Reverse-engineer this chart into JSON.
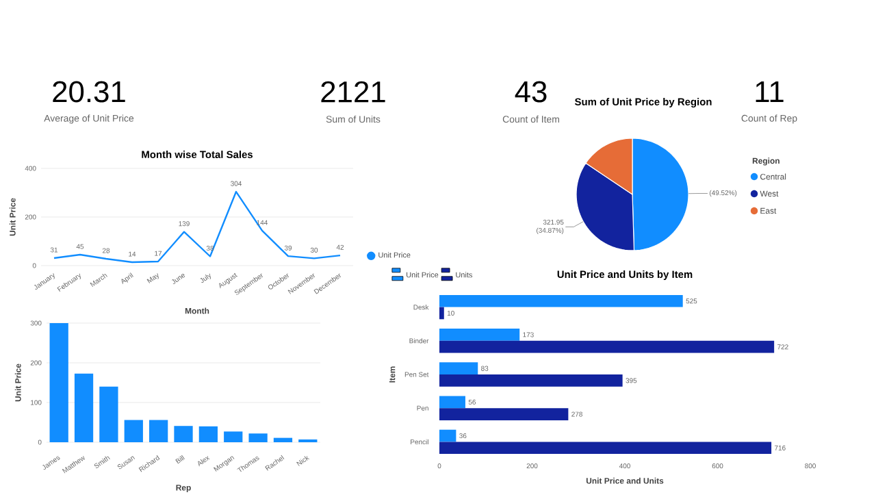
{
  "chart_data": [
    {
      "type": "other",
      "title": "20.31",
      "subtitle": "Average of Unit Price"
    },
    {
      "type": "other",
      "title": "2121",
      "subtitle": "Sum of Units"
    },
    {
      "type": "other",
      "title": "43",
      "subtitle": "Count of Item"
    },
    {
      "type": "other",
      "title": "11",
      "subtitle": "Count of Rep"
    },
    {
      "type": "line",
      "title": "Month wise Total Sales",
      "xlabel": "Month",
      "ylabel": "Unit Price",
      "categories": [
        "January",
        "February",
        "March",
        "April",
        "May",
        "June",
        "July",
        "August",
        "September",
        "October",
        "November",
        "December"
      ],
      "series": [
        {
          "name": "Unit Price",
          "color": "#118dff",
          "values": [
            31,
            45,
            28,
            14,
            17,
            139,
            38,
            304,
            144,
            39,
            30,
            42
          ]
        }
      ],
      "ylim": [
        0,
        400
      ],
      "yticks": [
        0,
        200,
        400
      ],
      "grid": "y",
      "legend": "right",
      "data_labels": true
    },
    {
      "type": "pie",
      "title": "Sum of Unit Price by Region",
      "legend_title": "Region",
      "legend": "right",
      "categories": [
        "Central",
        "West",
        "East"
      ],
      "values": [
        49.52,
        34.87,
        15.61
      ],
      "colors": [
        "#118dff",
        "#12239e",
        "#e66c37"
      ],
      "value_labels": [
        "(49.52%)",
        "321.95 (34.87%)",
        null
      ]
    },
    {
      "type": "bar",
      "xlabel": "Rep",
      "ylabel": "Unit Price",
      "categories": [
        "James",
        "Matthew",
        "Smith",
        "Susan",
        "Richard",
        "Bill",
        "Alex",
        "Morgan",
        "Thomas",
        "Rachel",
        "Nick"
      ],
      "values": [
        300,
        173,
        140,
        56,
        56,
        41,
        40,
        27,
        22,
        11,
        7
      ],
      "color": "#118dff",
      "ylim": [
        0,
        300
      ],
      "yticks": [
        0,
        100,
        200,
        300
      ],
      "grid": "y"
    },
    {
      "type": "bar",
      "orientation": "horizontal",
      "title": "Unit Price and Units by Item",
      "xlabel": "Unit Price and Units",
      "ylabel": "Item",
      "categories": [
        "Desk",
        "Binder",
        "Pen Set",
        "Pen",
        "Pencil"
      ],
      "series": [
        {
          "name": "Unit Price",
          "color": "#118dff",
          "values": [
            525,
            173,
            83,
            56,
            36
          ]
        },
        {
          "name": "Units",
          "color": "#12239e",
          "values": [
            10,
            722,
            395,
            278,
            716
          ]
        }
      ],
      "xlim": [
        0,
        800
      ],
      "xticks": [
        0,
        200,
        400,
        600,
        800
      ],
      "legend": "top left",
      "data_labels": true
    }
  ]
}
